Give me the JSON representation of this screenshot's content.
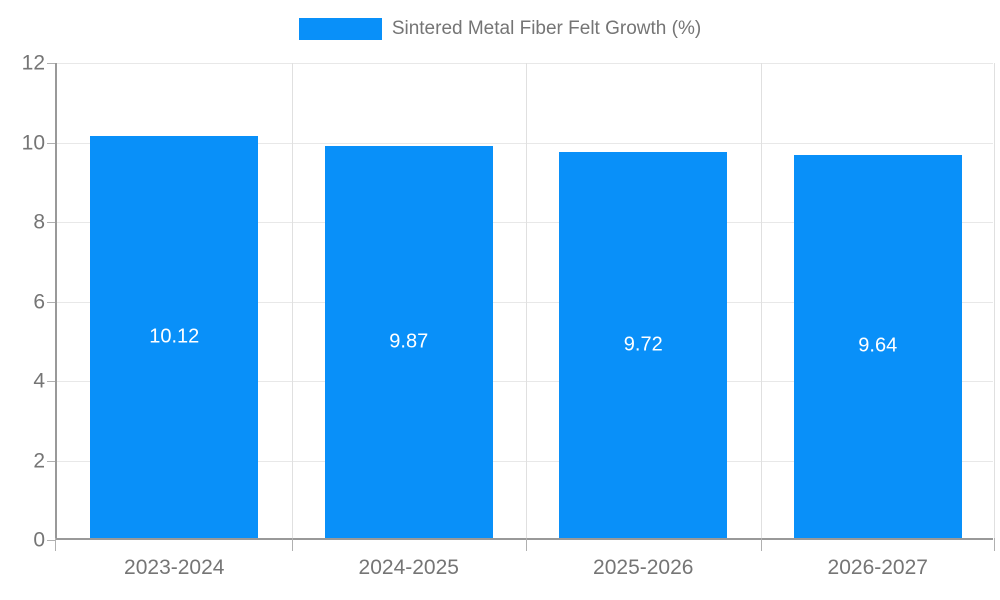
{
  "legend": {
    "label": "Sintered Metal Fiber Felt Growth (%)"
  },
  "chart_data": {
    "type": "bar",
    "title": "",
    "series_name": "Sintered Metal Fiber Felt Growth (%)",
    "categories": [
      "2023-2024",
      "2024-2025",
      "2025-2026",
      "2026-2027"
    ],
    "values": [
      10.12,
      9.87,
      9.72,
      9.64
    ],
    "value_labels": [
      "10.12",
      "9.87",
      "9.72",
      "9.64"
    ],
    "xlabel": "",
    "ylabel": "",
    "ylim": [
      0,
      12
    ],
    "yticks": [
      0,
      2,
      4,
      6,
      8,
      10,
      12
    ],
    "grid": true,
    "legend_position": "top-center",
    "colors": {
      "bar": "#0990f9",
      "axis": "#999999",
      "gridline_horizontal": "#e8e8e8",
      "gridline_vertical": "#e0e0e0",
      "tick_text": "#757575",
      "value_label_text": "#ffffff"
    }
  }
}
